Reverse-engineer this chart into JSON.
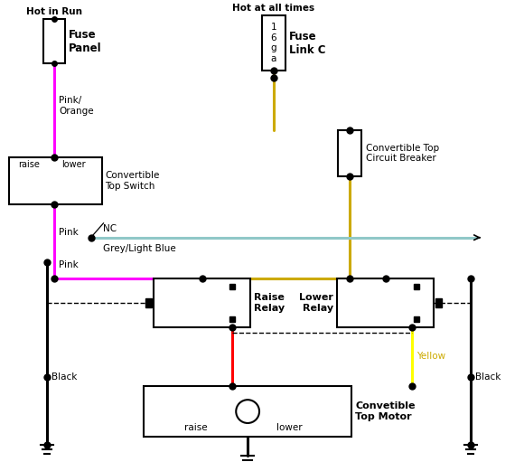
{
  "bg_color": "#ffffff",
  "text_color": "#000000",
  "wire_magenta": "#ff00ff",
  "wire_yellow_dark": "#ccaa00",
  "wire_yellow": "#ffff00",
  "wire_red": "#ff0000",
  "wire_black": "#000000",
  "wire_grey_lb": "#90c8c8",
  "label_hot_in_run": "Hot in Run",
  "label_hot_at_times": "Hot at all times",
  "label_fuse_panel": "Fuse\nPanel",
  "label_fuse_link": "Fuse\nLink C",
  "label_fuse_link_inner": "1\n6\ng\na",
  "label_conv_sw": "Convertible\nTop Switch",
  "label_conv_cb": "Convertible Top\nCircuit Breaker",
  "label_raise_relay": "Raise\nRelay",
  "label_lower_relay": "Lower\nRelay",
  "label_motor": "Convetible\nTop Motor",
  "label_pink_orange": "Pink/\nOrange",
  "label_pink": "Pink",
  "label_nc": "NC",
  "label_grey_lb": "Grey/Light Blue",
  "label_black": "Black",
  "label_yellow": "Yellow",
  "label_raise": "raise",
  "label_lower": "lower"
}
